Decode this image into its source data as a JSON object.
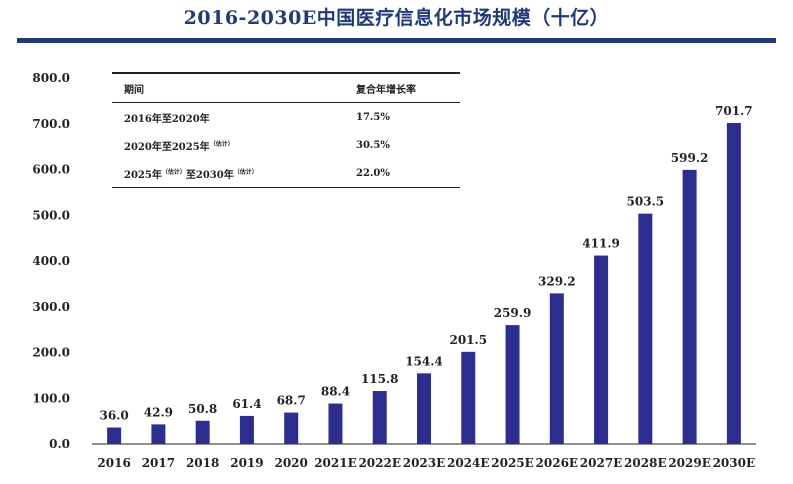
{
  "title": "2016-2030E中国医疗信息化市场规模（十亿）",
  "colors": {
    "bar": "#2B2E8E",
    "title": "#1F3A75",
    "axis": "#222222"
  },
  "chart_data": {
    "type": "bar",
    "title": "2016-2030E中国医疗信息化市场规模（十亿）",
    "xlabel": "",
    "ylabel": "",
    "ylim": [
      0,
      800
    ],
    "y_ticks": [
      "800.0",
      "700.0",
      "600.0",
      "500.0",
      "400.0",
      "300.0",
      "200.0",
      "100.0",
      "0.0"
    ],
    "categories": [
      "2016",
      "2017",
      "2018",
      "2019",
      "2020",
      "2021E",
      "2022E",
      "2023E",
      "2024E",
      "2025E",
      "2026E",
      "2027E",
      "2028E",
      "2029E",
      "2030E"
    ],
    "values": [
      36.0,
      42.9,
      50.8,
      61.4,
      68.7,
      88.4,
      115.8,
      154.4,
      201.5,
      259.9,
      329.2,
      411.9,
      503.5,
      599.2,
      701.7
    ],
    "data_labels": [
      "36.0",
      "42.9",
      "50.8",
      "61.4",
      "68.7",
      "88.4",
      "115.8",
      "154.4",
      "201.5",
      "259.9",
      "329.2",
      "411.9",
      "503.5",
      "599.2",
      "701.7"
    ],
    "grid": false,
    "legend": "none"
  },
  "cagr_table": {
    "header": {
      "period": "期间",
      "cagr": "复合年增长率"
    },
    "rows": [
      {
        "from": "2016年",
        "mid": "至",
        "to": "2020年",
        "from_note": "",
        "to_note": "",
        "cagr": "17.5%"
      },
      {
        "from": "2020年",
        "mid": "至",
        "to": "2025年",
        "from_note": "",
        "to_note": "（估计）",
        "cagr": "30.5%"
      },
      {
        "from": "2025年",
        "mid": "至",
        "to": "2030年",
        "from_note": "（估计）",
        "to_note": "（估计）",
        "cagr": "22.0%"
      }
    ]
  }
}
